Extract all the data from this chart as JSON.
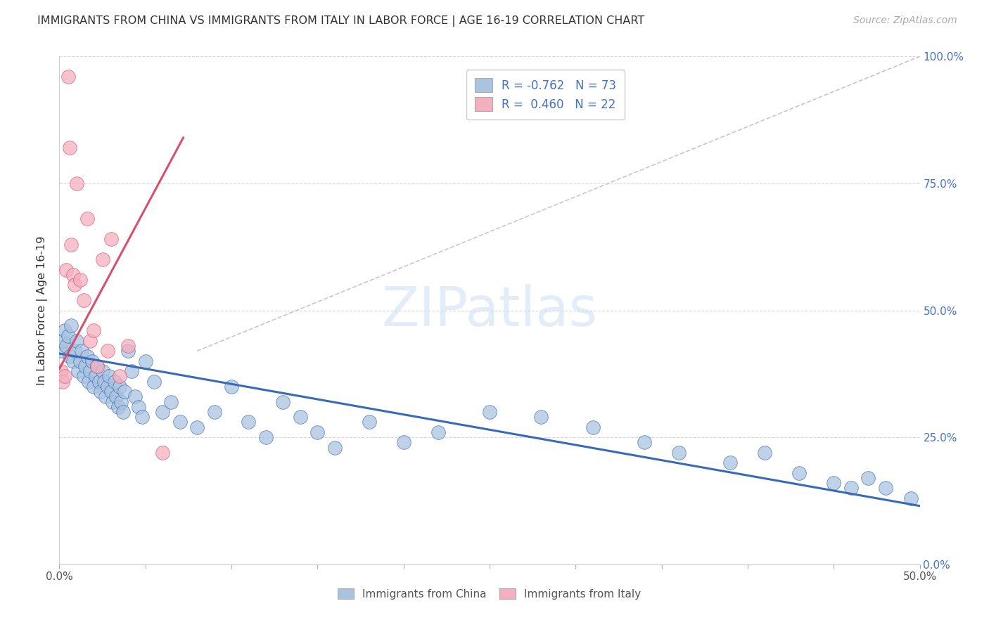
{
  "title": "IMMIGRANTS FROM CHINA VS IMMIGRANTS FROM ITALY IN LABOR FORCE | AGE 16-19 CORRELATION CHART",
  "source": "Source: ZipAtlas.com",
  "ylabel": "In Labor Force | Age 16-19",
  "xlim": [
    0.0,
    0.5
  ],
  "ylim": [
    0.0,
    1.0
  ],
  "xticks": [
    0.0,
    0.05,
    0.1,
    0.15,
    0.2,
    0.25,
    0.3,
    0.35,
    0.4,
    0.45,
    0.5
  ],
  "xticklabels_show": [
    "0.0%",
    "",
    "",
    "",
    "",
    "",
    "",
    "",
    "",
    "",
    "50.0%"
  ],
  "yticks": [
    0.0,
    0.25,
    0.5,
    0.75,
    1.0
  ],
  "yticklabels_right": [
    "0.0%",
    "25.0%",
    "50.0%",
    "75.0%",
    "100.0%"
  ],
  "legend_r_china": "-0.762",
  "legend_n_china": "73",
  "legend_r_italy": "0.460",
  "legend_n_italy": "22",
  "legend_label_china": "Immigrants from China",
  "legend_label_italy": "Immigrants from Italy",
  "watermark": "ZIPatlas",
  "color_china": "#aac4e0",
  "color_italy": "#f4afc0",
  "color_trendline_china": "#3a6ab5",
  "color_trendline_italy": "#d94f6e",
  "color_refline": "#c8c8c8",
  "china_trendline_x": [
    0.0,
    0.5
  ],
  "china_trendline_y": [
    0.415,
    0.115
  ],
  "italy_trendline_x": [
    0.0,
    0.072
  ],
  "italy_trendline_y": [
    0.385,
    0.84
  ],
  "refline_x": [
    0.08,
    0.5
  ],
  "refline_y": [
    0.42,
    1.0
  ],
  "china_x": [
    0.001,
    0.002,
    0.003,
    0.004,
    0.005,
    0.006,
    0.007,
    0.008,
    0.009,
    0.01,
    0.011,
    0.012,
    0.013,
    0.014,
    0.015,
    0.016,
    0.017,
    0.018,
    0.019,
    0.02,
    0.021,
    0.022,
    0.023,
    0.024,
    0.025,
    0.026,
    0.027,
    0.028,
    0.029,
    0.03,
    0.031,
    0.032,
    0.033,
    0.034,
    0.035,
    0.036,
    0.037,
    0.038,
    0.04,
    0.042,
    0.044,
    0.046,
    0.048,
    0.05,
    0.055,
    0.06,
    0.065,
    0.07,
    0.08,
    0.09,
    0.1,
    0.11,
    0.12,
    0.13,
    0.14,
    0.15,
    0.16,
    0.18,
    0.2,
    0.22,
    0.25,
    0.28,
    0.31,
    0.34,
    0.36,
    0.39,
    0.41,
    0.43,
    0.45,
    0.46,
    0.47,
    0.48,
    0.495
  ],
  "china_y": [
    0.42,
    0.44,
    0.46,
    0.43,
    0.45,
    0.41,
    0.47,
    0.4,
    0.42,
    0.44,
    0.38,
    0.4,
    0.42,
    0.37,
    0.39,
    0.41,
    0.36,
    0.38,
    0.4,
    0.35,
    0.37,
    0.39,
    0.36,
    0.34,
    0.38,
    0.36,
    0.33,
    0.35,
    0.37,
    0.34,
    0.32,
    0.36,
    0.33,
    0.31,
    0.35,
    0.32,
    0.3,
    0.34,
    0.42,
    0.38,
    0.33,
    0.31,
    0.29,
    0.4,
    0.36,
    0.3,
    0.32,
    0.28,
    0.27,
    0.3,
    0.35,
    0.28,
    0.25,
    0.32,
    0.29,
    0.26,
    0.23,
    0.28,
    0.24,
    0.26,
    0.3,
    0.29,
    0.27,
    0.24,
    0.22,
    0.2,
    0.22,
    0.18,
    0.16,
    0.15,
    0.17,
    0.15,
    0.13
  ],
  "italy_x": [
    0.001,
    0.002,
    0.003,
    0.004,
    0.005,
    0.006,
    0.007,
    0.008,
    0.009,
    0.01,
    0.012,
    0.014,
    0.016,
    0.018,
    0.02,
    0.022,
    0.025,
    0.028,
    0.03,
    0.035,
    0.04,
    0.06
  ],
  "italy_y": [
    0.38,
    0.36,
    0.37,
    0.58,
    0.96,
    0.82,
    0.63,
    0.57,
    0.55,
    0.75,
    0.56,
    0.52,
    0.68,
    0.44,
    0.46,
    0.39,
    0.6,
    0.42,
    0.64,
    0.37,
    0.43,
    0.22
  ]
}
